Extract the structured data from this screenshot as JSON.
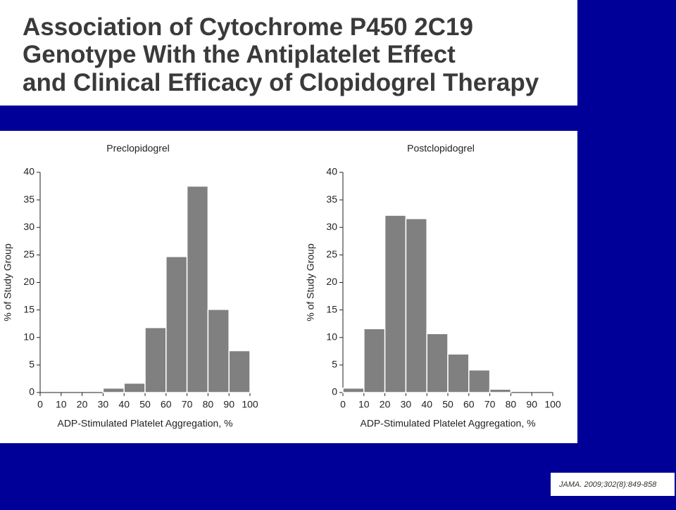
{
  "header": {
    "title_lines": [
      "Association of Cytochrome P450 2C19",
      "Genotype With the Antiplatelet Effect",
      "and Clinical Efficacy of Clopidogrel Therapy"
    ]
  },
  "citation": "JAMA. 2009;302(8):849-858",
  "chart_data": [
    {
      "type": "histogram",
      "title": "Preclopidogrel",
      "xlabel": "ADP-Stimulated Platelet Aggregation, %",
      "ylabel": "% of Study Group",
      "bins": [
        0,
        10,
        20,
        30,
        40,
        50,
        60,
        70,
        80,
        90,
        100
      ],
      "values": [
        0,
        0,
        0,
        0.8,
        1.7,
        11.8,
        24.7,
        37.5,
        15.1,
        7.6
      ],
      "color": "#808080",
      "xlim": [
        0,
        100
      ],
      "xticks": [
        0,
        10,
        20,
        30,
        40,
        50,
        60,
        70,
        80,
        90,
        100
      ],
      "ylim": [
        0,
        40
      ],
      "yticks": [
        0,
        5,
        10,
        15,
        20,
        25,
        30,
        35,
        40
      ]
    },
    {
      "type": "histogram",
      "title": "Postclopidogrel",
      "xlabel": "ADP-Stimulated Platelet Aggregation, %",
      "ylabel": "% of Study Group",
      "bins": [
        0,
        10,
        20,
        30,
        40,
        50,
        60,
        70,
        80,
        90,
        100
      ],
      "values": [
        0.8,
        11.6,
        32.2,
        31.6,
        10.7,
        7.0,
        4.1,
        0.6,
        0,
        0
      ],
      "color": "#808080",
      "xlim": [
        0,
        100
      ],
      "xticks": [
        0,
        10,
        20,
        30,
        40,
        50,
        60,
        70,
        80,
        90,
        100
      ],
      "ylim": [
        0,
        40
      ],
      "yticks": [
        0,
        5,
        10,
        15,
        20,
        25,
        30,
        35,
        40
      ]
    }
  ]
}
